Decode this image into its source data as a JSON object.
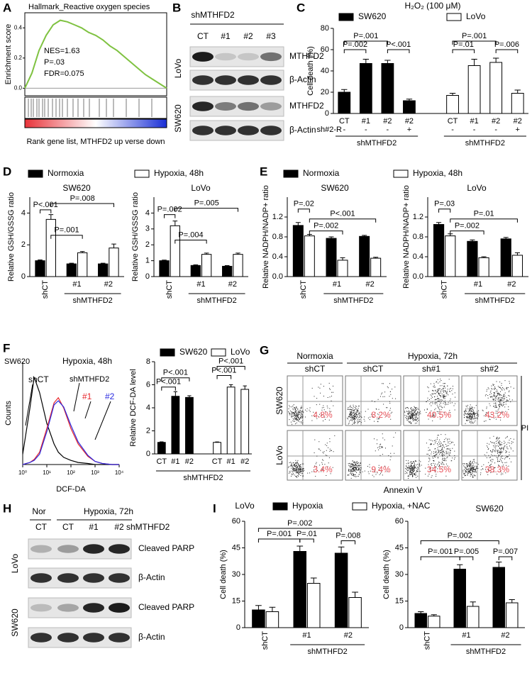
{
  "panel_letters": [
    "A",
    "B",
    "C",
    "D",
    "E",
    "F",
    "G",
    "H",
    "I"
  ],
  "chart_data": [
    {
      "type": "line",
      "title": "Hallmark_Reactive oxygen species",
      "y_label": "Enrichment score",
      "x_label": "Rank gene list, MTHFD2 up verse down",
      "annotations": [
        "NES=1.63",
        "P=.03",
        "FDR=0.075"
      ],
      "x": [
        0,
        5,
        10,
        15,
        20,
        25,
        30,
        35,
        40,
        45,
        50,
        55,
        60,
        65,
        70,
        75,
        80,
        85,
        90,
        95,
        100
      ],
      "series": [
        {
          "color": "#7fc241",
          "values": [
            0,
            0.1,
            0.25,
            0.35,
            0.42,
            0.45,
            0.44,
            0.42,
            0.4,
            0.37,
            0.35,
            0.32,
            0.28,
            0.25,
            0.21,
            0.17,
            0.13,
            0.09,
            0.06,
            0.03,
            0.0
          ]
        }
      ],
      "xlim": [
        0,
        100
      ],
      "ylim": [
        -0.05,
        0.5
      ],
      "yticks": [
        {
          "value": 0,
          "label": "0.0"
        },
        0.2,
        0.4
      ]
    },
    {
      "type": "bar",
      "title": "H₂O₂ (100 μM)",
      "y_label": "Cell death (%)",
      "categories": [
        "CT",
        "#1",
        "#2",
        "#2",
        "CT",
        "#1",
        "#2",
        "#2"
      ],
      "series": [
        {
          "name": "SW620",
          "color": "#000000",
          "values": [
            20,
            47,
            47,
            12,
            null,
            null,
            null,
            null
          ],
          "errors": [
            2.5,
            4,
            3,
            1.5,
            null,
            null,
            null,
            null
          ]
        },
        {
          "name": "LoVo",
          "color": "#ffffff",
          "values": [
            null,
            null,
            null,
            null,
            17,
            45,
            48,
            19
          ],
          "errors": [
            null,
            null,
            null,
            null,
            2,
            6,
            4,
            3
          ]
        }
      ],
      "row_label": "sh#2-R",
      "row_values": [
        "-",
        "-",
        "-",
        "+",
        "-",
        "-",
        "-",
        "+"
      ],
      "group_labels": [
        "shMTHFD2",
        "shMTHFD2"
      ],
      "annotations": [
        "P=.001",
        "P=.002",
        "P<.001",
        "P=.001",
        "P=.01",
        "P=.006"
      ],
      "ylim": [
        0,
        80
      ],
      "yticks": [
        0,
        20,
        40,
        60,
        80
      ]
    },
    {
      "type": "bar",
      "title": "SW620",
      "y_label": "Relative GSH/GSSG ratio",
      "categories": [
        "shCT",
        "#1",
        "#2"
      ],
      "series": [
        {
          "name": "Normoxia",
          "color": "#000000",
          "values": [
            1.0,
            0.8,
            0.8
          ],
          "errors": [
            0.05,
            0.04,
            0.04
          ]
        },
        {
          "name": "Hypoxia, 48h",
          "color": "#ffffff",
          "values": [
            3.6,
            1.5,
            1.8
          ],
          "errors": [
            0.3,
            0.08,
            0.25
          ]
        }
      ],
      "group_labels": [
        "shMTHFD2"
      ],
      "annotations": [
        "P<.001",
        "P=.001",
        "P=.008"
      ],
      "ylim": [
        0,
        5
      ],
      "yticks": [
        0,
        2,
        4
      ]
    },
    {
      "type": "bar",
      "title": "LoVo",
      "y_label": "Relative GSH/GSSG ratio",
      "categories": [
        "shCT",
        "#1",
        "#2"
      ],
      "series": [
        {
          "color": "#000000",
          "values": [
            1.0,
            0.7,
            0.65
          ],
          "errors": [
            0.04,
            0.04,
            0.04
          ]
        },
        {
          "color": "#ffffff",
          "values": [
            3.2,
            1.4,
            1.4
          ],
          "errors": [
            0.3,
            0.08,
            0.08
          ]
        }
      ],
      "group_labels": [
        "shMTHFD2"
      ],
      "annotations": [
        "P=.002",
        "P=.004",
        "P=.005"
      ],
      "ylim": [
        0,
        5
      ],
      "yticks": [
        0,
        1,
        2,
        3,
        4
      ]
    },
    {
      "type": "bar",
      "title": "SW620",
      "y_label": "Relative NADPH/NADP+ ratio",
      "categories": [
        "shCT",
        "#1",
        "#2"
      ],
      "series": [
        {
          "name": "Normoxia",
          "color": "#000000",
          "values": [
            1.03,
            0.77,
            0.81
          ],
          "errors": [
            0.06,
            0.03,
            0.02
          ]
        },
        {
          "name": "Hypoxia, 48h",
          "color": "#ffffff",
          "values": [
            0.82,
            0.33,
            0.37
          ],
          "errors": [
            0.03,
            0.05,
            0.02
          ]
        }
      ],
      "group_labels": [
        "shMTHFD2"
      ],
      "annotations": [
        "P=.02",
        "P=.002",
        "P<.001"
      ],
      "ylim": [
        0,
        1.6
      ],
      "yticks": [
        {
          "value": 0,
          "label": "0.0"
        },
        0.4,
        0.8,
        1.2
      ]
    },
    {
      "type": "bar",
      "title": "LoVo",
      "y_label": "Relative NADPH/NADP+ ratio",
      "categories": [
        "shCT",
        "#1",
        "#2"
      ],
      "series": [
        {
          "color": "#000000",
          "values": [
            1.05,
            0.71,
            0.76
          ],
          "errors": [
            0.04,
            0.03,
            0.03
          ]
        },
        {
          "color": "#ffffff",
          "values": [
            0.82,
            0.38,
            0.43
          ],
          "errors": [
            0.04,
            0.02,
            0.05
          ]
        }
      ],
      "group_labels": [
        "shMTHFD2"
      ],
      "annotations": [
        "P=.03",
        "P=.002",
        "P=.01"
      ],
      "ylim": [
        0,
        1.6
      ],
      "yticks": [
        {
          "value": 0,
          "label": "0.0"
        },
        0.4,
        0.8,
        1.2
      ]
    },
    {
      "type": "line",
      "title": "SW620",
      "subtitle": "Hypoxia, 48h",
      "annotations": [
        "shMTHFD2"
      ],
      "x_label": "DCF-DA",
      "y_label": "Counts",
      "log_x": true,
      "x": [
        1,
        2,
        3,
        5,
        10,
        20,
        30,
        50,
        100,
        200,
        500,
        1000,
        2000,
        5000,
        10000
      ],
      "series": [
        {
          "name": "shCT",
          "color": "#000000",
          "values": [
            10,
            55,
            85,
            70,
            40,
            20,
            12,
            7,
            4,
            2,
            1,
            0,
            0,
            0,
            0
          ]
        },
        {
          "name": "#1",
          "color": "#e8252a",
          "values": [
            0,
            2,
            5,
            12,
            35,
            60,
            65,
            55,
            35,
            20,
            8,
            3,
            1,
            0,
            0
          ]
        },
        {
          "name": "#2",
          "color": "#2a2ae0",
          "values": [
            0,
            2,
            4,
            10,
            32,
            58,
            62,
            56,
            38,
            22,
            9,
            3,
            1,
            0,
            0
          ]
        }
      ],
      "xlim": [
        1,
        10000
      ],
      "ylim": [
        0,
        100
      ],
      "xticks": [
        {
          "value": 1,
          "label": "10⁰"
        },
        {
          "value": 10,
          "label": "10¹"
        },
        {
          "value": 100,
          "label": "10²"
        },
        {
          "value": 1000,
          "label": "10³"
        },
        {
          "value": 10000,
          "label": "10⁴"
        }
      ]
    },
    {
      "type": "bar",
      "y_label": "Relative DCF-DA level",
      "categories": [
        "CT",
        "#1",
        "#2",
        "CT",
        "#1",
        "#2"
      ],
      "series": [
        {
          "name": "SW620",
          "color": "#000000",
          "values": [
            1.0,
            5.0,
            4.9,
            null,
            null,
            null
          ],
          "errors": [
            0.05,
            0.4,
            0.15,
            null,
            null,
            null
          ]
        },
        {
          "name": "LoVo",
          "color": "#ffffff",
          "values": [
            null,
            null,
            null,
            1.0,
            5.8,
            5.6
          ],
          "errors": [
            null,
            null,
            null,
            0.04,
            0.2,
            0.3
          ]
        }
      ],
      "group_labels": [
        "shMTHFD2"
      ],
      "annotations": [
        "P<.001",
        "P<.001",
        "P<.001",
        "P<.001"
      ],
      "ylim": [
        0,
        8
      ],
      "yticks": [
        0,
        2,
        4,
        6,
        8
      ]
    },
    {
      "type": "bar",
      "title": "LoVo",
      "y_label": "Cell death (%)",
      "categories": [
        "shCT",
        "#1",
        "#2"
      ],
      "series": [
        {
          "name": "Hypoxia",
          "color": "#000000",
          "values": [
            10,
            43,
            42
          ],
          "errors": [
            2.5,
            3,
            3.5
          ]
        },
        {
          "name": "Hypoxia, +NAC",
          "color": "#ffffff",
          "values": [
            9,
            25,
            17
          ],
          "errors": [
            2.5,
            3,
            3
          ]
        }
      ],
      "group_labels": [
        "shMTHFD2"
      ],
      "annotations": [
        "P=.002",
        "P=.001",
        "P=.01",
        "P=.008"
      ],
      "ylim": [
        0,
        60
      ],
      "yticks": [
        0,
        15,
        30,
        45,
        60
      ]
    },
    {
      "type": "bar",
      "title": "SW620",
      "y_label": "Cell death (%)",
      "categories": [
        "shCT",
        "#1",
        "#2"
      ],
      "series": [
        {
          "color": "#000000",
          "values": [
            8,
            33,
            34
          ],
          "errors": [
            1,
            2.5,
            3
          ]
        },
        {
          "color": "#ffffff",
          "values": [
            6.5,
            12,
            14
          ],
          "errors": [
            0.8,
            2.5,
            1.8
          ]
        }
      ],
      "group_labels": [
        "shMTHFD2"
      ],
      "annotations": [
        "P=.002",
        "P=.001",
        "P=.005",
        "P=.007"
      ],
      "ylim": [
        0,
        60
      ],
      "yticks": [
        0,
        15,
        30,
        45,
        60
      ]
    }
  ],
  "blot_b": {
    "header": "shMTHFD2",
    "lanes": [
      "CT",
      "#1",
      "#2",
      "#3"
    ],
    "cell_lines": [
      "LoVo",
      "SW620"
    ],
    "proteins": [
      "MTHFD2",
      "β-Actin",
      "MTHFD2",
      "β-Actin"
    ]
  },
  "flow": {
    "header_normoxia": "Normoxia",
    "header_hypoxia": "Hypoxia, 72h",
    "columns": [
      "shCT",
      "shCT",
      "sh#1",
      "sh#2"
    ],
    "rows": [
      "SW620",
      "LoVo"
    ],
    "percentages": [
      [
        "4.8%",
        "8.2%",
        "40.5%",
        "43.2%"
      ],
      [
        "3.4%",
        "9.4%",
        "34.5%",
        "38.3%"
      ]
    ],
    "y_label": "PI",
    "x_label": "Annexin V"
  },
  "blot_h": {
    "header_normoxia": "Nor",
    "header_hypoxia": "Hypoxia, 72h",
    "lanes": [
      "CT",
      "CT",
      "#1",
      "#2"
    ],
    "header": "shMTHFD2",
    "cell_lines": [
      "LoVo",
      "SW620"
    ],
    "proteins": [
      "Cleaved PARP",
      "β-Actin",
      "Cleaved PARP",
      "β-Actin"
    ]
  }
}
